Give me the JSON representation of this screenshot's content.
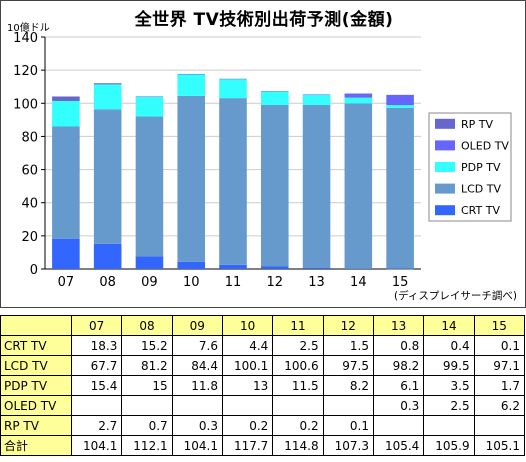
{
  "chart_data": {
    "type": "bar",
    "stacked": true,
    "title": "全世界 TV技術別出荷予測(金額)",
    "ylabel": "10億ドル",
    "xlabel": "",
    "categories": [
      "07",
      "08",
      "09",
      "10",
      "11",
      "12",
      "13",
      "14",
      "15"
    ],
    "ylim": [
      0,
      140
    ],
    "yticks": [
      0,
      20,
      40,
      60,
      80,
      100,
      120,
      140
    ],
    "grid": true,
    "legend_position": "right",
    "series": [
      {
        "name": "CRT TV",
        "color": "#3366ff",
        "values": [
          18.3,
          15.2,
          7.6,
          4.4,
          2.5,
          1.5,
          0.8,
          0.4,
          0.1
        ]
      },
      {
        "name": "LCD TV",
        "color": "#6699cc",
        "values": [
          67.7,
          81.2,
          84.4,
          100.1,
          100.6,
          97.5,
          98.2,
          99.5,
          97.1
        ]
      },
      {
        "name": "PDP TV",
        "color": "#33ffff",
        "values": [
          15.4,
          15,
          11.8,
          13,
          11.5,
          8.2,
          6.1,
          3.5,
          1.7
        ]
      },
      {
        "name": "OLED TV",
        "color": "#6666ff",
        "values": [
          null,
          null,
          null,
          null,
          null,
          null,
          0.3,
          2.5,
          6.2
        ]
      },
      {
        "name": "RP TV",
        "color": "#6666cc",
        "values": [
          2.7,
          0.7,
          0.3,
          0.2,
          0.2,
          0.1,
          null,
          null,
          null
        ]
      }
    ],
    "totals": [
      104.1,
      112.1,
      104.1,
      117.7,
      114.8,
      107.3,
      105.4,
      105.9,
      105.1
    ],
    "source_note": "(ディスプレイサーチ調べ)"
  },
  "table": {
    "header": [
      "",
      "07",
      "08",
      "09",
      "10",
      "11",
      "12",
      "13",
      "14",
      "15"
    ],
    "rows": [
      {
        "label": "CRT TV",
        "values": [
          "18.3",
          "15.2",
          "7.6",
          "4.4",
          "2.5",
          "1.5",
          "0.8",
          "0.4",
          "0.1"
        ]
      },
      {
        "label": "LCD TV",
        "values": [
          "67.7",
          "81.2",
          "84.4",
          "100.1",
          "100.6",
          "97.5",
          "98.2",
          "99.5",
          "97.1"
        ]
      },
      {
        "label": "PDP TV",
        "values": [
          "15.4",
          "15",
          "11.8",
          "13",
          "11.5",
          "8.2",
          "6.1",
          "3.5",
          "1.7"
        ]
      },
      {
        "label": "OLED TV",
        "values": [
          "",
          "",
          "",
          "",
          "",
          "",
          "0.3",
          "2.5",
          "6.2"
        ]
      },
      {
        "label": "RP TV",
        "values": [
          "2.7",
          "0.7",
          "0.3",
          "0.2",
          "0.2",
          "0.1",
          "",
          "",
          ""
        ]
      },
      {
        "label": "合計",
        "values": [
          "104.1",
          "112.1",
          "104.1",
          "117.7",
          "114.8",
          "107.3",
          "105.4",
          "105.9",
          "105.1"
        ]
      }
    ]
  }
}
